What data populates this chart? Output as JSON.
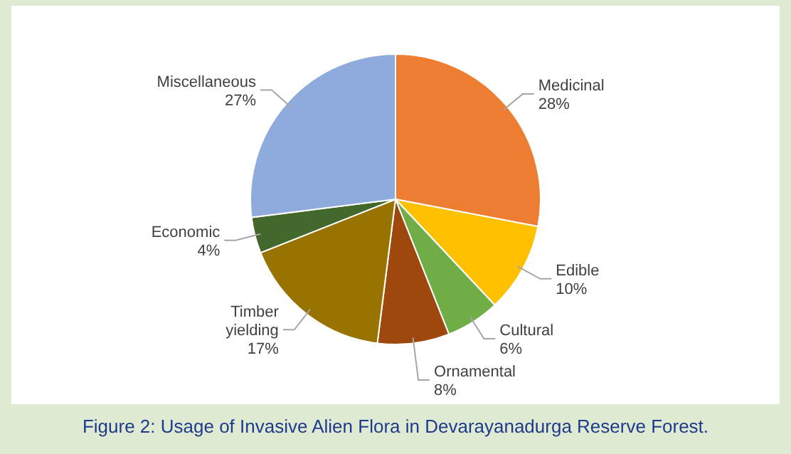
{
  "chart_data": {
    "type": "pie",
    "title": "Figure 2: Usage of Invasive Alien Flora in Devarayanadurga Reserve Forest.",
    "categories": [
      "Medicinal",
      "Edible",
      "Cultural",
      "Ornamental",
      "Timber yielding",
      "Economic",
      "Miscellaneous"
    ],
    "values": [
      28,
      10,
      6,
      8,
      17,
      4,
      27
    ],
    "colors": [
      "#ed7d31",
      "#ffc000",
      "#70ad47",
      "#9e480e",
      "#997300",
      "#43682b",
      "#8faadc"
    ],
    "value_labels": [
      "28%",
      "10%",
      "6%",
      "8%",
      "17%",
      "4%",
      "27%"
    ]
  }
}
